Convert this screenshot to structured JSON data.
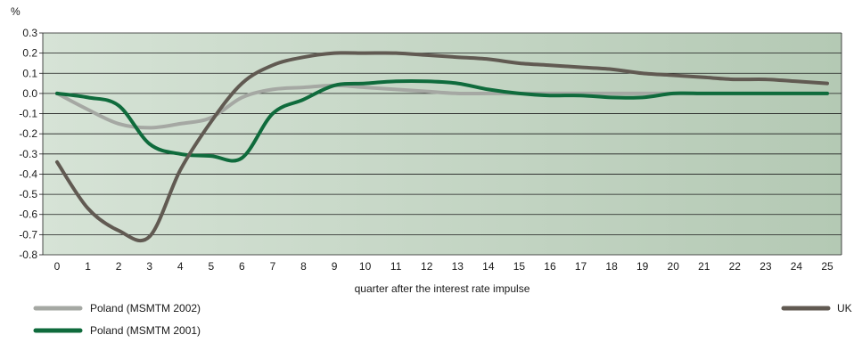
{
  "chart_data": {
    "type": "line",
    "ylabel": "%",
    "xlabel": "quarter after the interest rate impulse",
    "x": [
      0,
      1,
      2,
      3,
      4,
      5,
      6,
      7,
      8,
      9,
      10,
      11,
      12,
      13,
      14,
      15,
      16,
      17,
      18,
      19,
      20,
      21,
      22,
      23,
      24,
      25
    ],
    "ylim": [
      -0.8,
      0.3
    ],
    "y_ticks": [
      "0.3",
      "0.2",
      "0.1",
      "0.0",
      "-0.1",
      "-0.2",
      "-0.3",
      "-0.4",
      "-0.5",
      "-0.6",
      "-0.7",
      "-0.8"
    ],
    "grid": true,
    "legend_placement": "bottom",
    "background_gradient": [
      "#d6e3d6",
      "#b4c9b4"
    ],
    "series": [
      {
        "name": "Poland (MSMTM 2002)",
        "color": "#a5a8a3",
        "values": [
          0.0,
          -0.08,
          -0.15,
          -0.17,
          -0.15,
          -0.12,
          -0.02,
          0.02,
          0.03,
          0.04,
          0.03,
          0.02,
          0.01,
          0.0,
          0.0,
          0.0,
          0.0,
          0.0,
          0.0,
          0.0,
          0.0,
          0.0,
          0.0,
          0.0,
          0.0,
          0.0
        ]
      },
      {
        "name": "Poland (MSMTM 2001)",
        "color": "#0f6b3c",
        "values": [
          0.0,
          -0.02,
          -0.06,
          -0.25,
          -0.3,
          -0.31,
          -0.32,
          -0.1,
          -0.03,
          0.04,
          0.05,
          0.06,
          0.06,
          0.05,
          0.02,
          0.0,
          -0.01,
          -0.01,
          -0.02,
          -0.02,
          0.0,
          0.0,
          0.0,
          0.0,
          0.0,
          0.0
        ]
      },
      {
        "name": "UK",
        "color": "#615a52",
        "values": [
          -0.34,
          -0.57,
          -0.68,
          -0.71,
          -0.38,
          -0.14,
          0.05,
          0.14,
          0.18,
          0.2,
          0.2,
          0.2,
          0.19,
          0.18,
          0.17,
          0.15,
          0.14,
          0.13,
          0.12,
          0.1,
          0.09,
          0.08,
          0.07,
          0.07,
          0.06,
          0.05
        ]
      }
    ]
  }
}
